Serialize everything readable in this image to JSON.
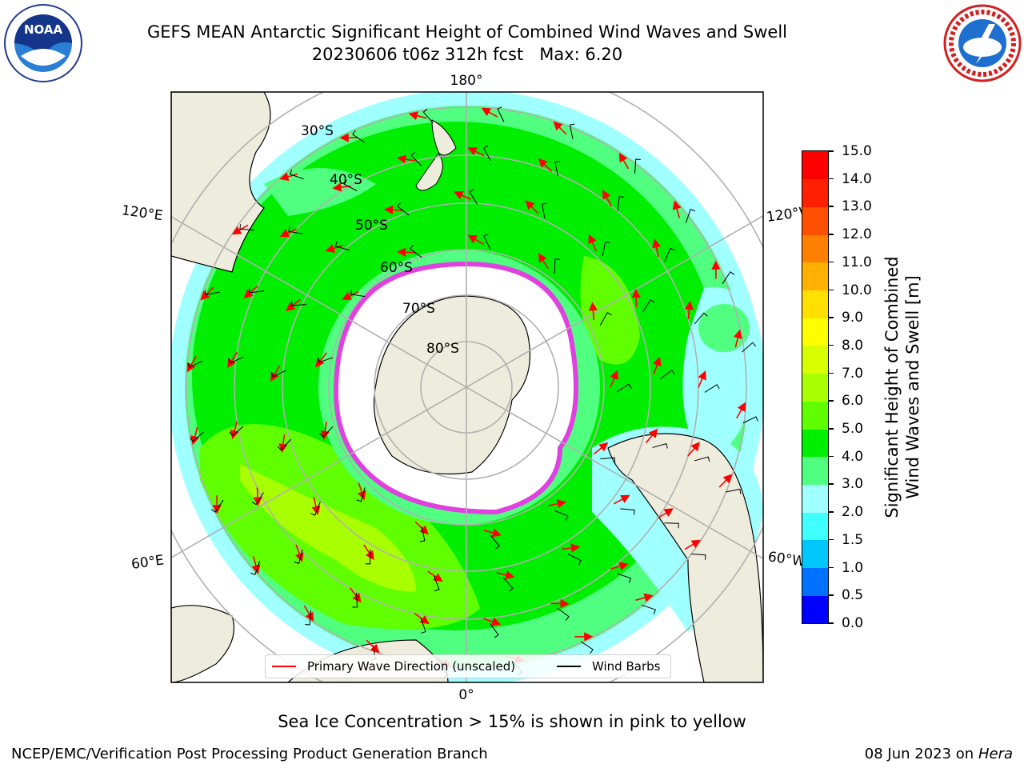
{
  "title": {
    "line1": "GEFS MEAN Antarctic Significant Height of Combined Wind Waves and Swell",
    "line2": "20230606 t06z 312h fcst   Max: 6.20"
  },
  "logos": {
    "left_icon": "noaa-logo",
    "right_icon": "national-weather-service-logo"
  },
  "map": {
    "projection": "south-polar-stereographic",
    "lat_labels": [
      "30°S",
      "40°S",
      "50°S",
      "60°S",
      "70°S",
      "80°S"
    ],
    "lon_labels": {
      "top": "180°",
      "bottom": "0°",
      "left_upper": "120°E",
      "left_lower": "60°E",
      "right_upper": "120°W",
      "right_lower": "60°W"
    },
    "legend": {
      "wave_direction": "Primary Wave Direction (unscaled)",
      "wind_barbs": "Wind Barbs"
    },
    "colors": {
      "land": "#eeecdc",
      "ice_edge": "#e040e0",
      "arrow": "#ff0000",
      "grid": "#b0b0b0"
    }
  },
  "chart_data": {
    "type": "heatmap",
    "variable": "Significant Height of Combined Wind Waves and Swell",
    "units": "m",
    "max_value": 6.2,
    "colorbar": {
      "label": "Significant Height of Combined Wind Waves and Swell [m]",
      "ticks": [
        "0.0",
        "0.5",
        "1.0",
        "1.5",
        "2.0",
        "3.0",
        "4.0",
        "5.0",
        "6.0",
        "7.0",
        "8.0",
        "9.0",
        "10.0",
        "11.0",
        "12.0",
        "13.0",
        "14.0",
        "15.0"
      ],
      "colors": [
        "#0000ff",
        "#0070ff",
        "#00c8ff",
        "#40ffff",
        "#a0ffff",
        "#50ff80",
        "#00ee00",
        "#60ff00",
        "#a8ff00",
        "#d8ff00",
        "#ffff00",
        "#ffe000",
        "#ffb000",
        "#ff8000",
        "#ff5000",
        "#ff2000",
        "#ff0000"
      ]
    }
  },
  "notes": {
    "sea_ice": "Sea Ice Concentration > 15% is shown in pink to yellow",
    "producer": "NCEP/EMC/Verification Post Processing Product Generation Branch",
    "date": "08 Jun 2023",
    "on": "on",
    "host": "Hera"
  }
}
